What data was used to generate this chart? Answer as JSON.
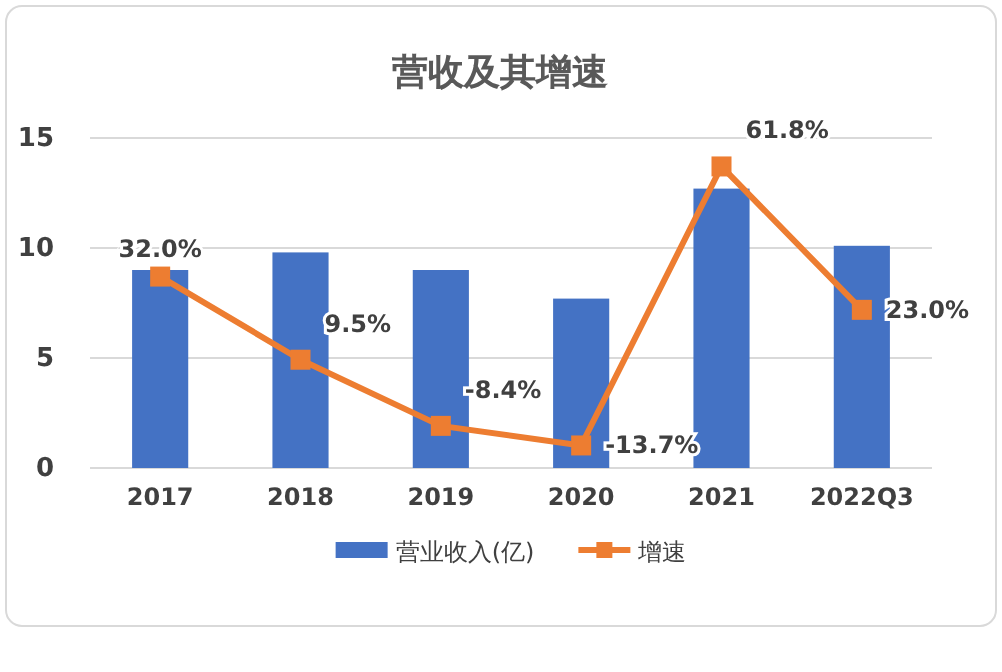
{
  "chart_data": {
    "type": "bar",
    "title": "营收及其增速",
    "categories": [
      "2017",
      "2018",
      "2019",
      "2020",
      "2021",
      "2022Q3"
    ],
    "series": [
      {
        "name": "营业收入(亿)",
        "color": "#4472c4",
        "values": [
          9.0,
          9.8,
          9.0,
          7.7,
          12.7,
          10.1
        ]
      },
      {
        "name": "增速",
        "type": "line",
        "axis": "y2",
        "color": "#ed7d31",
        "marker": "square",
        "values": [
          32.0,
          9.5,
          -8.4,
          -13.7,
          61.8,
          23.0
        ],
        "value_labels": [
          "32.0%",
          "9.5%",
          "-8.4%",
          "-13.7%",
          "61.8%",
          "23.0%"
        ]
      }
    ],
    "ylim": [
      0,
      15
    ],
    "yticks": [
      0,
      5,
      10,
      15
    ],
    "y2lim": [
      -19.8,
      69.5
    ],
    "grid": "y",
    "legend": "bottom"
  }
}
